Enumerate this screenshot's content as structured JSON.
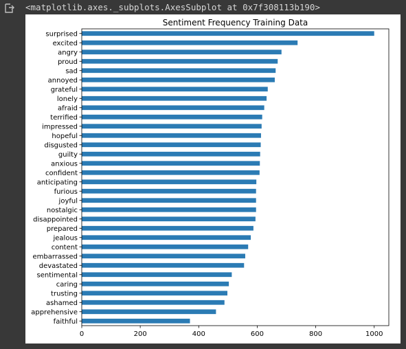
{
  "output": {
    "repr_text": "<matplotlib.axes._subplots.AxesSubplot at 0x7f308113b190>",
    "icon": "output-arrow-icon"
  },
  "chart_data": {
    "type": "bar",
    "orientation": "horizontal",
    "title": "Sentiment Frequency Training Data",
    "xlabel": "",
    "ylabel": "",
    "xlim": [
      0,
      1050
    ],
    "xticks": [
      0,
      200,
      400,
      600,
      800,
      1000
    ],
    "bar_color": "#2b7bb4",
    "grid": false,
    "categories": [
      "surprised",
      "excited",
      "angry",
      "proud",
      "sad",
      "annoyed",
      "grateful",
      "lonely",
      "afraid",
      "terrified",
      "impressed",
      "hopeful",
      "disgusted",
      "guilty",
      "anxious",
      "confident",
      "anticipating",
      "furious",
      "joyful",
      "nostalgic",
      "disappointed",
      "prepared",
      "jealous",
      "content",
      "embarrassed",
      "devastated",
      "sentimental",
      "caring",
      "trusting",
      "ashamed",
      "apprehensive",
      "faithful"
    ],
    "values": [
      1000,
      738,
      683,
      670,
      663,
      660,
      636,
      632,
      624,
      617,
      615,
      613,
      612,
      610,
      609,
      608,
      597,
      596,
      596,
      596,
      594,
      587,
      578,
      569,
      559,
      555,
      513,
      503,
      498,
      488,
      459,
      370
    ]
  }
}
